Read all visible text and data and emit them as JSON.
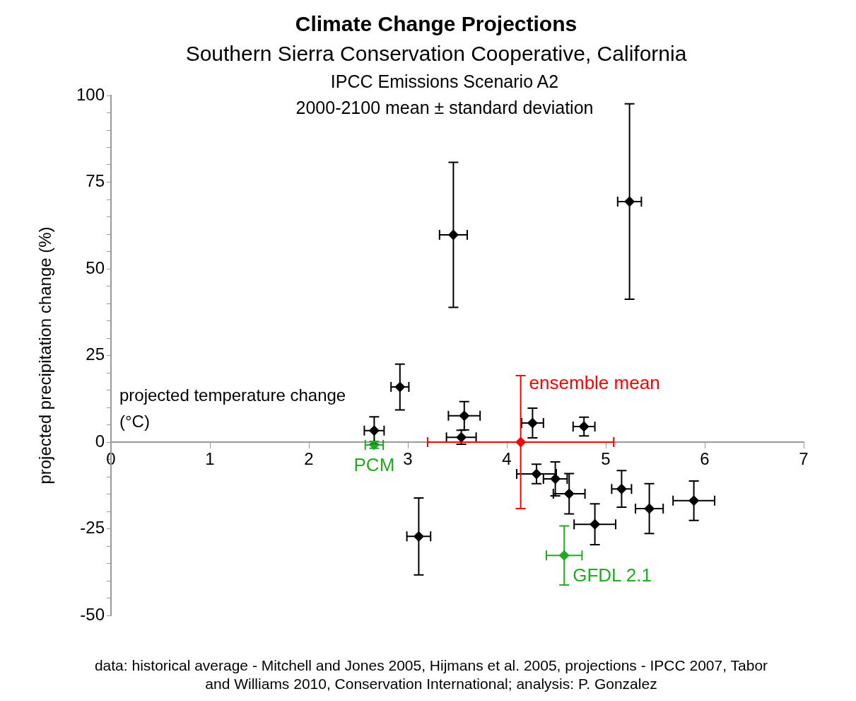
{
  "chart_data": {
    "type": "scatter",
    "title": "Climate Change Projections",
    "subtitle": "Southern Sierra Conservation Cooperative, California",
    "xlabel": "projected temperature change (°C)",
    "ylabel": "projected precipitation change (%)",
    "annotations": [
      "IPCC Emissions Scenario A2",
      "2000-2100 mean ± standard deviation",
      "data: historical average - Mitchell and Jones 2005, Hijmans et al. 2005, projections - IPCC 2007, Tabor and Williams 2010, Conservation International; analysis: P. Gonzalez"
    ],
    "xlim": [
      0,
      7
    ],
    "xticks": [
      0,
      1,
      2,
      3,
      4,
      5,
      6,
      7
    ],
    "ylim": [
      -50,
      100
    ],
    "yticks": [
      -50,
      {
        "value": -45,
        "label": null
      },
      {
        "value": -40,
        "label": null
      },
      {
        "value": -35,
        "label": null
      },
      {
        "value": -30,
        "label": null
      },
      -25,
      {
        "value": -20,
        "label": null
      },
      {
        "value": -15,
        "label": null
      },
      {
        "value": -10,
        "label": null
      },
      {
        "value": -5,
        "label": null
      },
      0,
      {
        "value": 5,
        "label": null
      },
      {
        "value": 10,
        "label": null
      },
      {
        "value": 15,
        "label": null
      },
      {
        "value": 20,
        "label": null
      },
      25,
      {
        "value": 30,
        "label": null
      },
      {
        "value": 35,
        "label": null
      },
      {
        "value": 40,
        "label": null
      },
      {
        "value": 45,
        "label": null
      },
      50,
      {
        "value": 55,
        "label": null
      },
      {
        "value": 60,
        "label": null
      },
      {
        "value": 65,
        "label": null
      },
      {
        "value": 70,
        "label": null
      },
      75,
      {
        "value": 80,
        "label": null
      },
      {
        "value": 85,
        "label": null
      },
      {
        "value": 90,
        "label": null
      },
      {
        "value": 95,
        "label": null
      },
      100
    ],
    "grid": false,
    "legend": false,
    "marker": "diamond",
    "series": [
      {
        "color": "#000000",
        "x": [
          2.66,
          2.92,
          3.54,
          3.57,
          3.11,
          3.46,
          5.24,
          4.26,
          4.78,
          4.3,
          4.49,
          4.63,
          4.89,
          5.16,
          5.44,
          5.89
        ],
        "values": [
          3.3,
          15.9,
          1.4,
          7.6,
          -27.2,
          59.8,
          69.4,
          5.5,
          4.5,
          -9.2,
          -10.6,
          -14.9,
          -23.7,
          -13.5,
          -19.2,
          -16.9
        ],
        "errors": [
          4,
          6.6,
          2,
          4.1,
          11.1,
          20.9,
          28.2,
          4.3,
          2.7,
          2.8,
          4.9,
          5.8,
          5.9,
          5.3,
          7.2,
          5.7
        ],
        "xerrors": [
          0.1,
          0.09,
          0.15,
          0.16,
          0.12,
          0.14,
          0.12,
          0.11,
          0.11,
          0.2,
          0.12,
          0.16,
          0.21,
          0.1,
          0.14,
          0.21
        ]
      },
      {
        "name": "PCM",
        "color": "#22aa22",
        "x": [
          2.66
        ],
        "values": [
          -0.8
        ],
        "errors": [
          1
        ],
        "xerrors": [
          0.09
        ]
      },
      {
        "name": "GFDL 2.1",
        "color": "#22aa22",
        "x": [
          4.58
        ],
        "values": [
          -32.7
        ],
        "errors": [
          8.5
        ],
        "xerrors": [
          0.18
        ]
      },
      {
        "name": "ensemble mean",
        "color": "#ff0000",
        "x": [
          4.14
        ],
        "values": [
          0
        ],
        "errors": [
          19.2
        ],
        "xerrors": [
          0.94
        ]
      }
    ]
  }
}
